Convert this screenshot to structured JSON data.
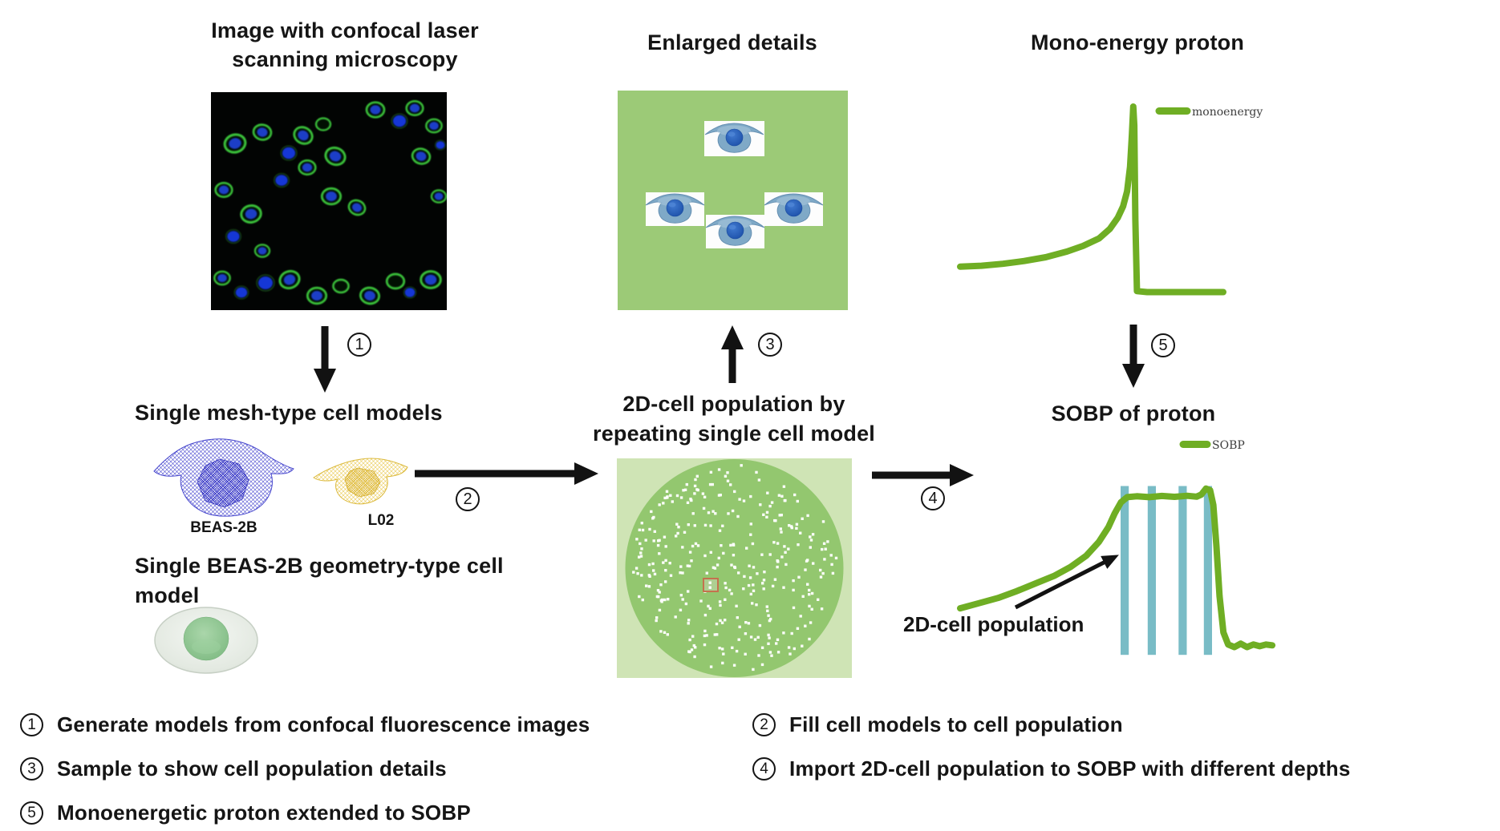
{
  "panels": {
    "confocal": {
      "title": [
        "Image with confocal laser",
        "scanning microscopy"
      ]
    },
    "mesh_models": {
      "title": "Single mesh-type cell models",
      "labels": {
        "cell1": "BEAS-2B",
        "cell2": "L02"
      }
    },
    "geometry_model": {
      "title": [
        "Single BEAS-2B geometry-type cell",
        "model"
      ]
    },
    "enlarged": {
      "title": "Enlarged details"
    },
    "population": {
      "title": [
        "2D-cell population by",
        "repeating single cell model"
      ]
    },
    "mono": {
      "title": "Mono-energy proton"
    },
    "sobp": {
      "title": "SOBP of proton",
      "annotation": "2D-cell population"
    }
  },
  "step_markers": {
    "s1": "1",
    "s2": "2",
    "s3": "3",
    "s4": "4",
    "s5": "5"
  },
  "footnotes": [
    {
      "num": "1",
      "text": "Generate models from confocal fluorescence images"
    },
    {
      "num": "2",
      "text": "Fill cell models to cell population"
    },
    {
      "num": "3",
      "text": "Sample to show cell population details"
    },
    {
      "num": "4",
      "text": "Import 2D-cell population to SOBP with different depths"
    },
    {
      "num": "5",
      "text": "Monoenergetic proton extended to SOBP"
    }
  ],
  "colors": {
    "accent_green": "#6fae24",
    "teal_bar": "#79bcc6",
    "panel_green": "#9cca77",
    "population_bg": "#cfe4b5",
    "population_circle": "#93c76f",
    "cell_body_blue": "#7fa9c7",
    "cell_nucleus_blue": "#2257b8",
    "mesh_blue": "#4444cd",
    "mesh_yellow": "#e9c94f",
    "geometry_body": "#e3e9e1",
    "geometry_nucleus": "#8cc48f",
    "highlight_border": "#c4724e",
    "arrow_black": "#121212"
  },
  "chart_data": [
    {
      "id": "monoenergy_bragg",
      "type": "line",
      "title": "Mono-energy proton",
      "legend": [
        {
          "label": "monoenergy"
        }
      ],
      "xlabel": "",
      "ylabel": "",
      "x_range": [
        0,
        100
      ],
      "y_range": [
        0,
        1
      ],
      "grid": false,
      "legend_position": "upper right",
      "series": [
        {
          "name": "monoenergy",
          "x": [
            0,
            8,
            16,
            24,
            32,
            40,
            46,
            52,
            56,
            59,
            61,
            62.5,
            63.6,
            64.3,
            64.8,
            65.2,
            65.6,
            66.2,
            70,
            80,
            90,
            98.5
          ],
          "y": [
            0.15,
            0.155,
            0.165,
            0.18,
            0.2,
            0.23,
            0.26,
            0.3,
            0.35,
            0.41,
            0.47,
            0.55,
            0.68,
            0.85,
            1.0,
            0.9,
            0.4,
            0.02,
            0.015,
            0.015,
            0.015,
            0.015
          ]
        }
      ]
    },
    {
      "id": "sobp",
      "type": "line",
      "title": "SOBP of proton",
      "legend": [
        {
          "label": "SOBP"
        }
      ],
      "xlabel": "",
      "ylabel": "",
      "x_range": [
        0,
        100
      ],
      "y_range": [
        0,
        1
      ],
      "grid": false,
      "legend_position": "upper right",
      "series": [
        {
          "name": "SOBP",
          "x": [
            0,
            6,
            12,
            18,
            24,
            30,
            35,
            40,
            44,
            47,
            49,
            51,
            53,
            56,
            60,
            64,
            68,
            72,
            75,
            76.5,
            78,
            79.3,
            80.3,
            81.3,
            82.3,
            83.5,
            85,
            87,
            89,
            91,
            93,
            95,
            97,
            99
          ],
          "y": [
            0.26,
            0.29,
            0.32,
            0.36,
            0.405,
            0.45,
            0.5,
            0.565,
            0.645,
            0.73,
            0.81,
            0.875,
            0.905,
            0.91,
            0.905,
            0.912,
            0.907,
            0.913,
            0.908,
            0.92,
            0.955,
            0.945,
            0.86,
            0.62,
            0.33,
            0.12,
            0.05,
            0.035,
            0.055,
            0.035,
            0.05,
            0.04,
            0.05,
            0.045
          ]
        }
      ],
      "overlay_bars": {
        "label": "2D-cell population",
        "color_key": "teal_bar",
        "x_centers": [
          52.2,
          60.8,
          70.6,
          78.6
        ],
        "width": 2.6,
        "y_bottom": -0.01,
        "y_top": 0.97
      }
    }
  ]
}
